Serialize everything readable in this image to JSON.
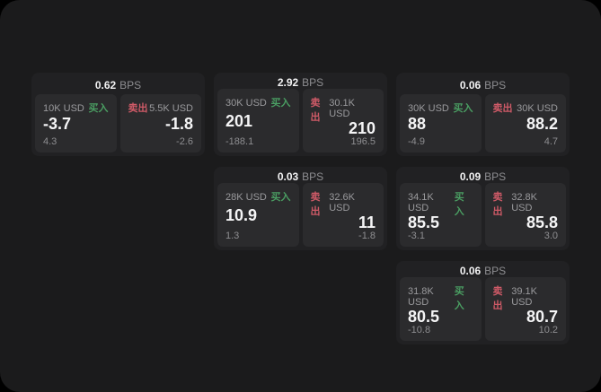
{
  "labels": {
    "bps_unit": "BPS",
    "buy": "买入",
    "sell": "卖出"
  },
  "colors": {
    "background": "#000000",
    "panel": "#1b1b1c",
    "card": "#212123",
    "side_panel": "#2b2b2d",
    "value_text": "#f5f5f6",
    "muted_text": "#8e8e91",
    "buy_green": "#4a9d62",
    "sell_red": "#ce5a67"
  },
  "cards": [
    {
      "bps": "0.62",
      "col": 1,
      "row": 1,
      "buy": {
        "amount": "10K USD",
        "value": "-3.7",
        "change": "4.3"
      },
      "sell": {
        "amount": "5.5K USD",
        "value": "-1.8",
        "change": "-2.6"
      }
    },
    {
      "bps": "2.92",
      "col": 2,
      "row": 1,
      "buy": {
        "amount": "30K USD",
        "value": "201",
        "change": "-188.1"
      },
      "sell": {
        "amount": "30.1K USD",
        "value": "210",
        "change": "196.5"
      }
    },
    {
      "bps": "0.06",
      "col": 3,
      "row": 1,
      "buy": {
        "amount": "30K USD",
        "value": "88",
        "change": "-4.9"
      },
      "sell": {
        "amount": "30K USD",
        "value": "88.2",
        "change": "4.7"
      }
    },
    {
      "bps": "0.03",
      "col": 2,
      "row": 2,
      "buy": {
        "amount": "28K USD",
        "value": "10.9",
        "change": "1.3"
      },
      "sell": {
        "amount": "32.6K USD",
        "value": "11",
        "change": "-1.8"
      }
    },
    {
      "bps": "0.09",
      "col": 3,
      "row": 2,
      "buy": {
        "amount": "34.1K USD",
        "value": "85.5",
        "change": "-3.1"
      },
      "sell": {
        "amount": "32.8K USD",
        "value": "85.8",
        "change": "3.0"
      }
    },
    {
      "bps": "0.06",
      "col": 3,
      "row": 3,
      "buy": {
        "amount": "31.8K USD",
        "value": "80.5",
        "change": "-10.8"
      },
      "sell": {
        "amount": "39.1K USD",
        "value": "80.7",
        "change": "10.2"
      }
    }
  ]
}
